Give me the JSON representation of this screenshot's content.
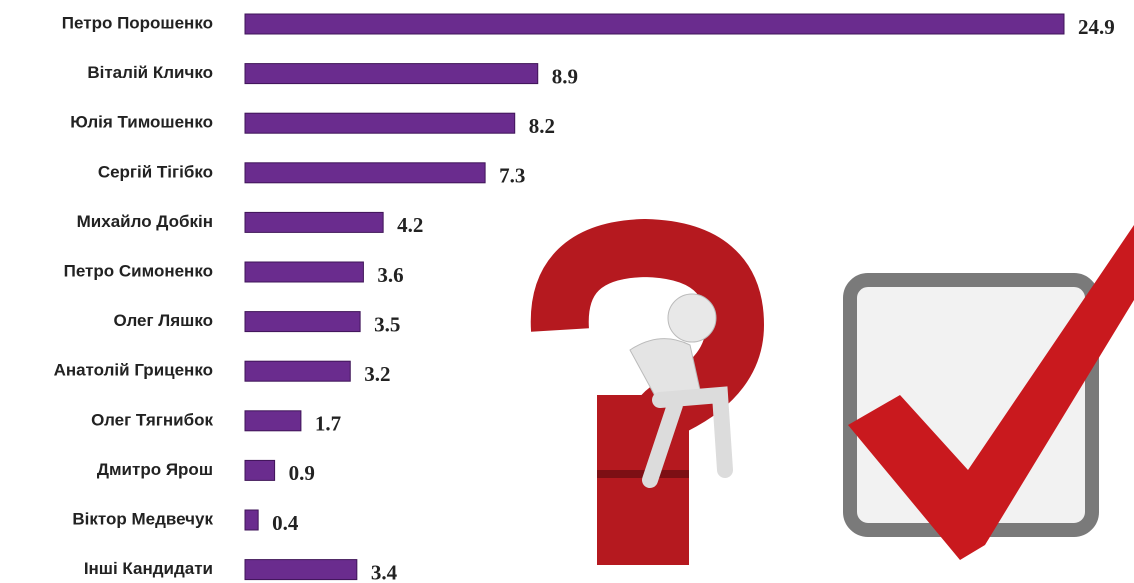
{
  "chart_data": {
    "type": "bar",
    "orientation": "horizontal",
    "categories": [
      "Петро Порошенко",
      "Віталій Кличко",
      "Юлія Тимошенко",
      "Сергій Тігібко",
      "Михайло Добкін",
      "Петро Симоненко",
      "Олег Ляшко",
      "Анатолій Гриценко",
      "Олег Тягнибок",
      "Дмитро Ярош",
      "Віктор Медвечук",
      "Інші Кандидати"
    ],
    "values": [
      24.9,
      8.9,
      8.2,
      7.3,
      4.2,
      3.6,
      3.5,
      3.2,
      1.7,
      0.9,
      0.4,
      3.4
    ],
    "color": "#6a2c8e"
  }
}
